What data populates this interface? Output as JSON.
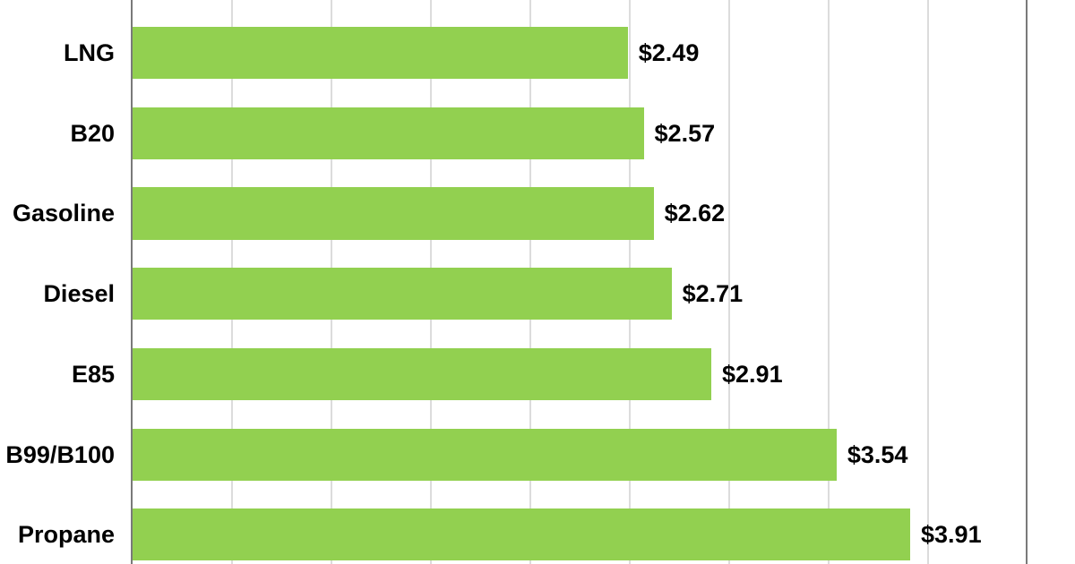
{
  "chart_data": {
    "type": "bar",
    "orientation": "horizontal",
    "title": "",
    "xlabel": "",
    "ylabel": "",
    "categories": [
      "LNG",
      "B20",
      "Gasoline",
      "Diesel",
      "E85",
      "B99/B100",
      "Propane"
    ],
    "values": [
      2.49,
      2.57,
      2.62,
      2.71,
      2.91,
      3.54,
      3.91
    ],
    "value_labels": [
      "$2.49",
      "$2.57",
      "$2.62",
      "$2.71",
      "$2.91",
      "$3.54",
      "$3.91"
    ],
    "xlim": [
      0,
      4.5
    ],
    "gridline_step": 0.5,
    "grid": true,
    "legend": false,
    "colors": {
      "bar": "#92D050",
      "gridline": "#DCDCDC",
      "axis": "#7A7A7A",
      "plot_border": "#7A7A7A",
      "background": "#FFFFFF",
      "text": "#000000"
    }
  }
}
